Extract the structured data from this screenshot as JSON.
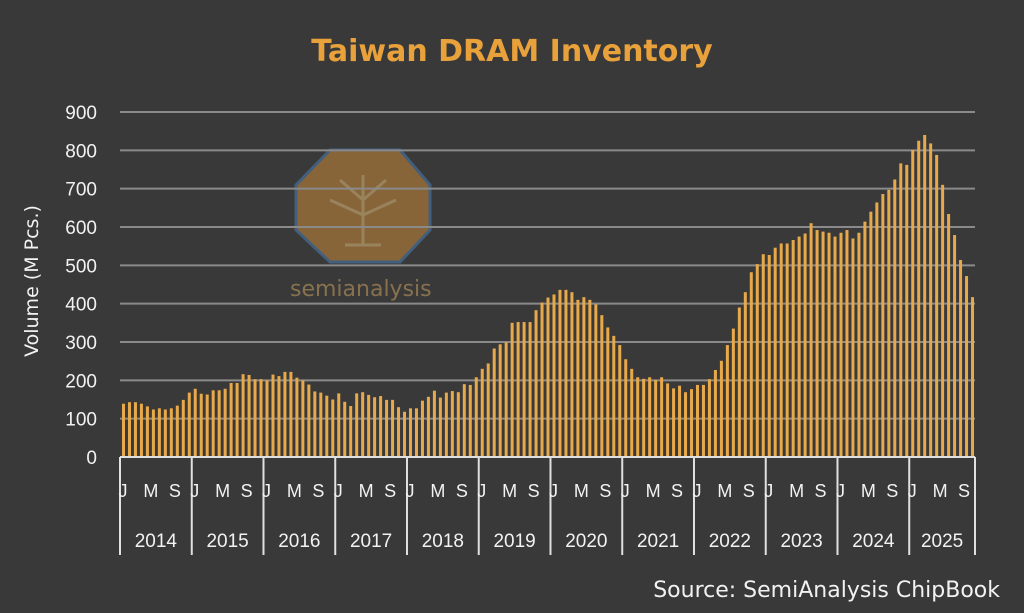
{
  "chart_data": {
    "type": "bar",
    "title": "Taiwan DRAM Inventory",
    "xlabel": "",
    "ylabel": "Volume (M Pcs.)",
    "ylim": [
      0,
      900
    ],
    "yticks": [
      0,
      100,
      200,
      300,
      400,
      500,
      600,
      700,
      800,
      900
    ],
    "grid": true,
    "start": "2014-01",
    "end": "2025-11",
    "years": [
      "2014",
      "2015",
      "2016",
      "2017",
      "2018",
      "2019",
      "2020",
      "2021",
      "2022",
      "2023",
      "2024",
      "2025"
    ],
    "month_labels": [
      "J",
      "M",
      "S"
    ],
    "values": [
      139,
      143,
      143,
      139,
      132,
      124,
      127,
      124,
      127,
      134,
      149,
      168,
      178,
      165,
      163,
      174,
      174,
      178,
      193,
      193,
      216,
      214,
      203,
      203,
      200,
      215,
      211,
      222,
      222,
      207,
      200,
      189,
      171,
      168,
      160,
      150,
      166,
      144,
      133,
      166,
      169,
      162,
      156,
      159,
      149,
      149,
      130,
      118,
      127,
      127,
      147,
      157,
      173,
      155,
      168,
      172,
      169,
      190,
      188,
      208,
      230,
      244,
      283,
      294,
      299,
      350,
      352,
      352,
      352,
      383,
      403,
      416,
      424,
      436,
      436,
      430,
      410,
      417,
      410,
      398,
      370,
      338,
      316,
      292,
      255,
      230,
      208,
      204,
      208,
      201,
      208,
      192,
      179,
      186,
      169,
      177,
      188,
      188,
      203,
      227,
      251,
      292,
      335,
      390,
      430,
      482,
      503,
      529,
      527,
      546,
      557,
      557,
      566,
      575,
      583,
      610,
      592,
      588,
      585,
      575,
      585,
      592,
      570,
      585,
      614,
      640,
      664,
      686,
      697,
      724,
      766,
      762,
      801,
      825,
      840,
      818,
      788,
      710,
      634,
      579,
      514,
      472,
      417
    ],
    "bar_color": "#e8a94a"
  },
  "source": "Source: SemiAnalysis ChipBook",
  "watermark": "semianalysis"
}
